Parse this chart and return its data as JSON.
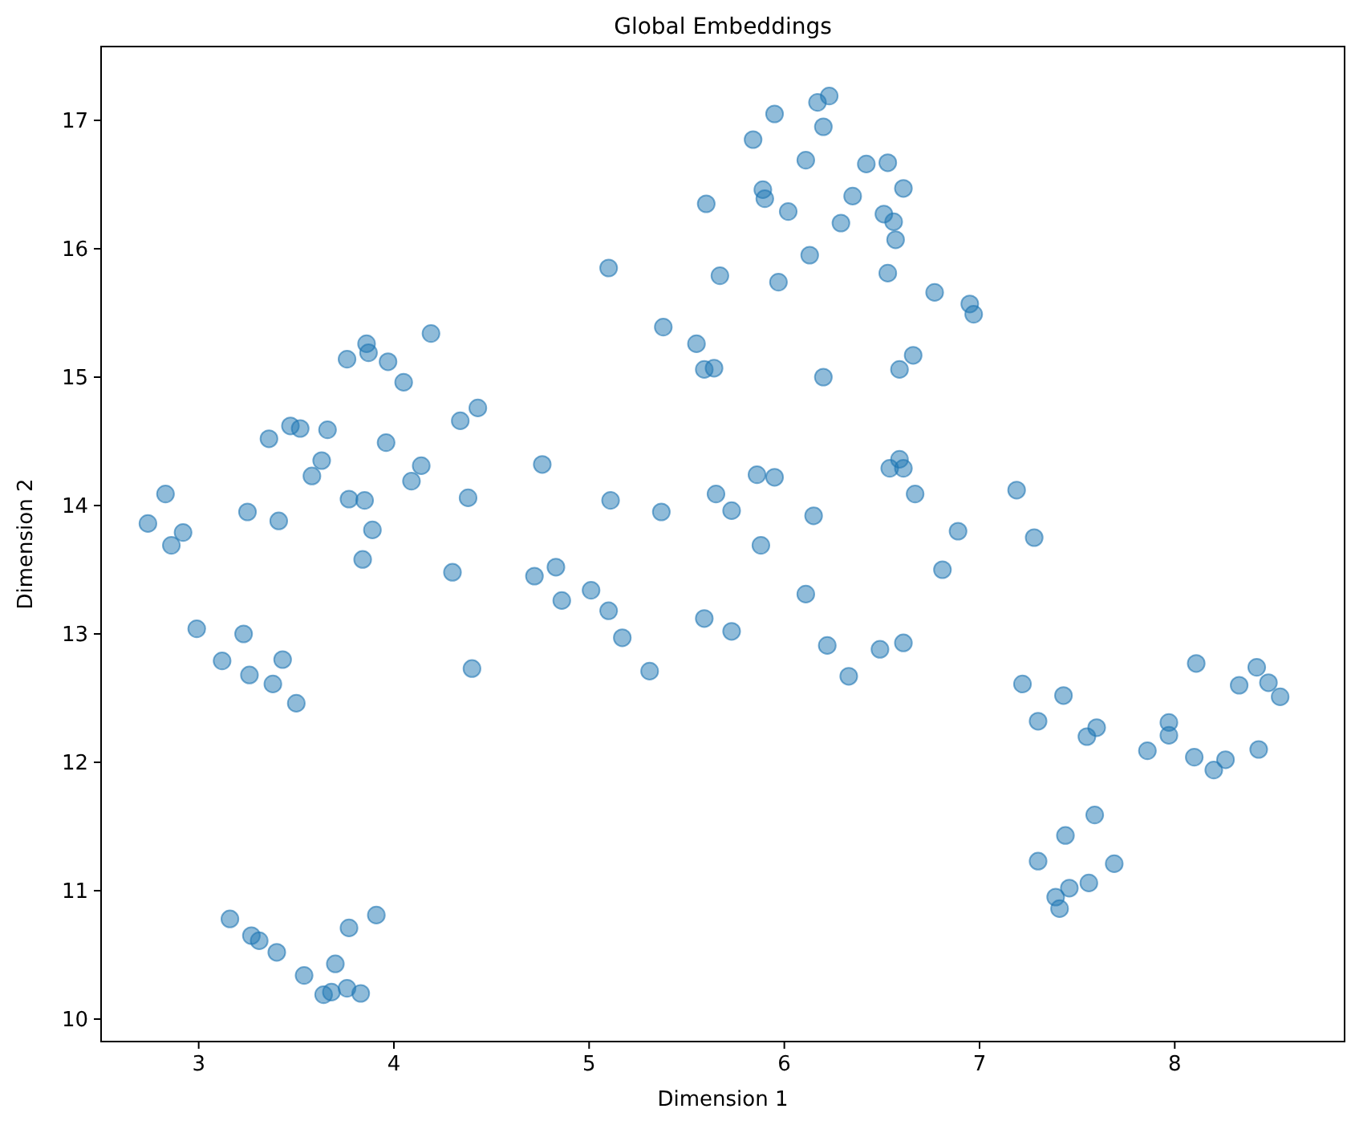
{
  "chart_data": {
    "type": "scatter",
    "title": "Global Embeddings",
    "xlabel": "Dimension 1",
    "ylabel": "Dimension 2",
    "xlim": [
      2.5,
      8.87
    ],
    "ylim": [
      9.825,
      17.575
    ],
    "xticks": [
      3,
      4,
      5,
      6,
      7,
      8
    ],
    "yticks": [
      10,
      11,
      12,
      13,
      14,
      15,
      16,
      17
    ],
    "marker": "circle",
    "series": [
      {
        "color": "#1f77b4",
        "x": [
          6.23,
          6.17,
          5.95,
          6.2,
          5.84,
          6.11,
          6.42,
          6.53,
          5.89,
          5.9,
          6.61,
          5.6,
          6.35,
          6.02,
          6.51,
          6.56,
          6.29,
          6.57,
          6.13,
          5.1,
          5.67,
          5.97,
          6.53,
          6.77,
          6.95,
          6.97,
          5.38,
          5.55,
          5.59,
          5.64,
          6.2,
          6.66,
          6.59,
          4.76,
          6.59,
          6.54,
          6.61,
          6.67,
          7.19,
          5.86,
          5.95,
          5.65,
          5.11,
          5.73,
          5.37,
          6.15,
          6.89,
          7.28,
          5.88,
          6.81,
          4.83,
          4.72,
          4.86,
          5.01,
          5.1,
          6.11,
          5.17,
          5.59,
          5.73,
          6.22,
          6.49,
          6.61,
          5.31,
          6.33,
          7.22,
          7.43,
          8.11,
          8.42,
          8.33,
          8.48,
          8.54,
          7.3,
          7.6,
          7.55,
          7.97,
          7.97,
          7.86,
          8.1,
          8.26,
          8.2,
          8.43,
          7.59,
          7.44,
          7.3,
          7.69,
          7.56,
          7.46,
          7.39,
          7.41,
          3.16,
          3.27,
          3.31,
          3.4,
          3.54,
          3.64,
          3.68,
          3.76,
          3.83,
          3.7,
          3.77,
          3.91,
          4.19,
          3.86,
          3.87,
          3.76,
          3.97,
          4.05,
          4.43,
          4.34,
          3.47,
          3.52,
          3.66,
          3.36,
          3.96,
          3.63,
          4.14,
          3.58,
          4.09,
          2.83,
          3.77,
          3.85,
          4.38,
          2.74,
          3.25,
          3.41,
          2.92,
          2.86,
          3.89,
          3.84,
          4.3,
          2.99,
          3.23,
          3.12,
          3.43,
          3.26,
          3.38,
          3.5,
          4.4
        ],
        "values": [
          17.19,
          17.14,
          17.05,
          16.95,
          16.85,
          16.69,
          16.66,
          16.67,
          16.46,
          16.39,
          16.47,
          16.35,
          16.41,
          16.29,
          16.27,
          16.21,
          16.2,
          16.07,
          15.95,
          15.85,
          15.79,
          15.74,
          15.81,
          15.66,
          15.57,
          15.49,
          15.39,
          15.26,
          15.06,
          15.07,
          15.0,
          15.17,
          15.06,
          14.32,
          14.36,
          14.29,
          14.29,
          14.09,
          14.12,
          14.24,
          14.22,
          14.09,
          14.04,
          13.96,
          13.95,
          13.92,
          13.8,
          13.75,
          13.69,
          13.5,
          13.52,
          13.45,
          13.26,
          13.34,
          13.18,
          13.31,
          12.97,
          13.12,
          13.02,
          12.91,
          12.88,
          12.93,
          12.71,
          12.67,
          12.61,
          12.52,
          12.77,
          12.74,
          12.6,
          12.62,
          12.51,
          12.32,
          12.27,
          12.2,
          12.31,
          12.21,
          12.09,
          12.04,
          12.02,
          11.94,
          12.1,
          11.59,
          11.43,
          11.23,
          11.21,
          11.06,
          11.02,
          10.95,
          10.86,
          10.78,
          10.65,
          10.61,
          10.52,
          10.34,
          10.19,
          10.21,
          10.24,
          10.2,
          10.43,
          10.71,
          10.81,
          15.34,
          15.26,
          15.19,
          15.14,
          15.12,
          14.96,
          14.76,
          14.66,
          14.62,
          14.6,
          14.59,
          14.52,
          14.49,
          14.35,
          14.31,
          14.23,
          14.19,
          14.09,
          14.05,
          14.04,
          14.06,
          13.86,
          13.95,
          13.88,
          13.79,
          13.69,
          13.81,
          13.58,
          13.48,
          13.04,
          13.0,
          12.79,
          12.8,
          12.68,
          12.61,
          12.46,
          12.73
        ]
      }
    ]
  }
}
